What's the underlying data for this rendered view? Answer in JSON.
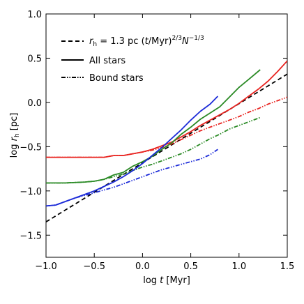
{
  "chart_data": {
    "type": "line",
    "xlabel": "log t [Myr]",
    "ylabel": "log r_h [pc]",
    "xlim": [
      -1.0,
      1.5
    ],
    "ylim": [
      -1.75,
      1.0
    ],
    "x_ticks": [
      -1.0,
      -0.5,
      0.0,
      0.5,
      1.0,
      1.5
    ],
    "y_ticks": [
      -1.5,
      -1.0,
      -0.5,
      0.0,
      0.5,
      1.0
    ],
    "x_tick_labels": [
      "−1.0",
      "−0.5",
      "0.0",
      "0.5",
      "1.0",
      "1.5"
    ],
    "y_tick_labels": [
      "−1.5",
      "−1.0",
      "−0.5",
      "0.0",
      "0.5",
      "1.0"
    ],
    "grid": false,
    "legend": {
      "placement": "top-left",
      "entries": [
        {
          "label": "r_h = 1.3 pc (t/Myr)^{2/3} N^{−1/3}",
          "style": "dashed",
          "color": "#000000"
        },
        {
          "label": "All stars",
          "style": "solid",
          "color": "#000000"
        },
        {
          "label": "Bound stars",
          "style": "dashdot",
          "color": "#000000"
        }
      ]
    },
    "colors": {
      "red": "#e8231f",
      "green": "#2a8a25",
      "blue": "#1b2ad8",
      "black": "#000000"
    },
    "series": [
      {
        "style": "dashed",
        "color": "#000000",
        "x": [
          -1.0,
          1.5
        ],
        "y": [
          -1.35,
          0.32
        ]
      },
      {
        "style": "solid",
        "color": "#e8231f",
        "x": [
          -1.0,
          -0.6,
          -0.4,
          -0.3,
          -0.2,
          -0.1,
          0.0,
          0.1,
          0.2,
          0.3,
          0.4,
          0.5,
          0.6,
          0.7,
          0.8,
          0.9,
          1.0,
          1.1,
          1.2,
          1.3,
          1.4,
          1.5
        ],
        "y": [
          -0.62,
          -0.62,
          -0.62,
          -0.6,
          -0.6,
          -0.58,
          -0.56,
          -0.53,
          -0.49,
          -0.45,
          -0.39,
          -0.33,
          -0.26,
          -0.2,
          -0.14,
          -0.08,
          -0.01,
          0.07,
          0.15,
          0.24,
          0.35,
          0.47
        ]
      },
      {
        "style": "dashdot",
        "color": "#e8231f",
        "x": [
          -1.0,
          -0.6,
          -0.4,
          -0.3,
          -0.2,
          -0.1,
          0.0,
          0.1,
          0.2,
          0.3,
          0.4,
          0.5,
          0.6,
          0.7,
          0.8,
          0.9,
          1.0,
          1.1,
          1.2,
          1.3,
          1.4,
          1.5
        ],
        "y": [
          -0.62,
          -0.62,
          -0.62,
          -0.6,
          -0.6,
          -0.58,
          -0.56,
          -0.54,
          -0.51,
          -0.47,
          -0.42,
          -0.37,
          -0.32,
          -0.28,
          -0.24,
          -0.2,
          -0.16,
          -0.11,
          -0.07,
          -0.02,
          0.02,
          0.06
        ]
      },
      {
        "style": "solid",
        "color": "#2a8a25",
        "x": [
          -1.0,
          -0.8,
          -0.6,
          -0.5,
          -0.4,
          -0.3,
          -0.2,
          -0.1,
          0.0,
          0.1,
          0.2,
          0.3,
          0.4,
          0.5,
          0.6,
          0.7,
          0.8,
          0.9,
          1.0,
          1.1,
          1.22
        ],
        "y": [
          -0.91,
          -0.91,
          -0.9,
          -0.89,
          -0.87,
          -0.82,
          -0.79,
          -0.72,
          -0.67,
          -0.61,
          -0.53,
          -0.46,
          -0.36,
          -0.28,
          -0.19,
          -0.12,
          -0.05,
          0.06,
          0.17,
          0.26,
          0.37
        ]
      },
      {
        "style": "dashdot",
        "color": "#2a8a25",
        "x": [
          -1.0,
          -0.8,
          -0.6,
          -0.5,
          -0.4,
          -0.3,
          -0.2,
          -0.1,
          0.0,
          0.1,
          0.2,
          0.3,
          0.4,
          0.5,
          0.6,
          0.7,
          0.8,
          0.9,
          1.0,
          1.1,
          1.22
        ],
        "y": [
          -0.91,
          -0.91,
          -0.9,
          -0.89,
          -0.87,
          -0.84,
          -0.81,
          -0.77,
          -0.73,
          -0.7,
          -0.66,
          -0.62,
          -0.58,
          -0.53,
          -0.47,
          -0.41,
          -0.36,
          -0.3,
          -0.26,
          -0.22,
          -0.17
        ]
      },
      {
        "style": "solid",
        "color": "#1b2ad8",
        "x": [
          -1.0,
          -0.9,
          -0.8,
          -0.7,
          -0.6,
          -0.5,
          -0.4,
          -0.3,
          -0.2,
          -0.1,
          0.0,
          0.1,
          0.2,
          0.3,
          0.4,
          0.5,
          0.6,
          0.7,
          0.78
        ],
        "y": [
          -1.17,
          -1.16,
          -1.12,
          -1.08,
          -1.04,
          -1.0,
          -0.95,
          -0.9,
          -0.84,
          -0.77,
          -0.69,
          -0.6,
          -0.51,
          -0.41,
          -0.31,
          -0.2,
          -0.1,
          -0.02,
          0.07
        ]
      },
      {
        "style": "dashdot",
        "color": "#1b2ad8",
        "x": [
          -1.0,
          -0.9,
          -0.8,
          -0.7,
          -0.6,
          -0.5,
          -0.4,
          -0.3,
          -0.2,
          -0.1,
          0.0,
          0.1,
          0.2,
          0.3,
          0.4,
          0.5,
          0.6,
          0.7,
          0.78
        ],
        "y": [
          -1.17,
          -1.16,
          -1.12,
          -1.08,
          -1.05,
          -1.02,
          -0.99,
          -0.96,
          -0.92,
          -0.88,
          -0.84,
          -0.8,
          -0.76,
          -0.73,
          -0.7,
          -0.67,
          -0.64,
          -0.59,
          -0.53
        ]
      }
    ]
  }
}
